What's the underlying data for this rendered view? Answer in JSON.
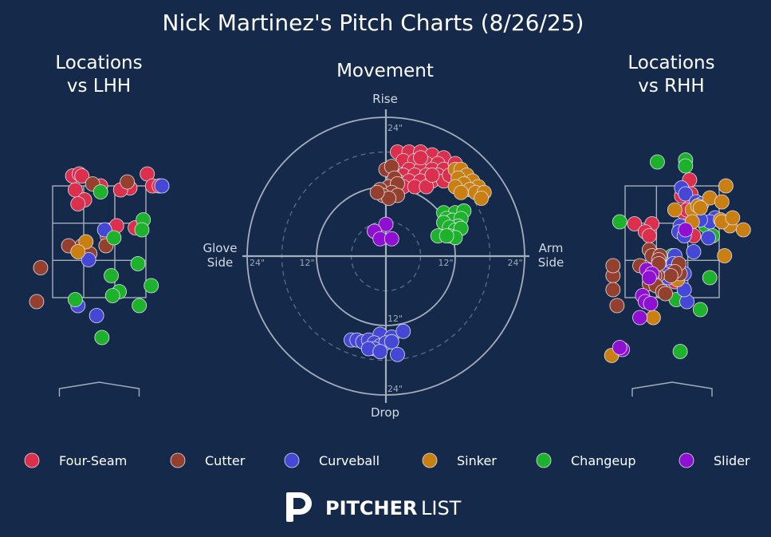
{
  "colors": {
    "background": "#152a4b",
    "guide": "#a5aebb",
    "Four-Seam": "#dc2f4d",
    "Cutter": "#95402f",
    "Curveball": "#4548d7",
    "Sinker": "#ca7f12",
    "Changeup": "#1db12c",
    "Slider": "#8f0fd2"
  },
  "brand": {
    "mark": "P",
    "word_bold": "PITCHER",
    "word_light": "LIST"
  },
  "chart_data": [
    {
      "type": "scatter",
      "title": "Nick Martinez's Pitch Charts (8/26/25)",
      "subtitle": "Locations\nvs LHH",
      "panel_title_lines": [
        "Locations",
        "vs LHH"
      ],
      "xlim": [
        -12,
        85
      ],
      "ylim": [
        -30,
        70
      ],
      "legend_position": "bottom",
      "series": [
        {
          "name": "Four-Seam",
          "points": [
            [
              15,
              61
            ],
            [
              20,
              62
            ],
            [
              22,
              61
            ],
            [
              71,
              62
            ],
            [
              75,
              56
            ],
            [
              80,
              56
            ],
            [
              17,
              54
            ],
            [
              36,
              56
            ],
            [
              58,
              55
            ],
            [
              51,
              54
            ],
            [
              24,
              49
            ],
            [
              19,
              47
            ],
            [
              62,
              35
            ],
            [
              48,
              36
            ]
          ]
        },
        {
          "name": "Cutter",
          "points": [
            [
              30,
              57
            ],
            [
              56,
              58
            ],
            [
              41,
              31
            ],
            [
              22,
              26
            ],
            [
              12,
              26
            ],
            [
              40,
              26
            ],
            [
              28,
              22
            ],
            [
              -9,
              15
            ],
            [
              -12,
              -2
            ]
          ]
        },
        {
          "name": "Curveball",
          "points": [
            [
              82,
              56
            ],
            [
              39,
              34
            ],
            [
              27,
              19
            ],
            [
              19,
              -4
            ],
            [
              33,
              -9
            ]
          ]
        },
        {
          "name": "Sinker",
          "points": [
            [
              25,
              28
            ],
            [
              19,
              23
            ]
          ]
        },
        {
          "name": "Changeup",
          "points": [
            [
              36,
              53
            ],
            [
              68,
              39
            ],
            [
              67,
              34
            ],
            [
              46,
              30
            ],
            [
              64,
              17
            ],
            [
              44,
              11
            ],
            [
              74,
              6
            ],
            [
              50,
              3
            ],
            [
              45,
              1
            ],
            [
              17,
              -1
            ],
            [
              65,
              -4
            ],
            [
              37,
              -20
            ]
          ]
        },
        {
          "name": "Slider",
          "points": []
        }
      ]
    },
    {
      "type": "scatter",
      "title": "Movement",
      "xlabel": "Glove\nSide",
      "x_labels": [
        "Glove",
        "Side",
        "Arm",
        "Side"
      ],
      "ylabel_top": "Rise",
      "ylabel_bottom": "Drop",
      "rlabels": [
        "24\"",
        "12\"",
        "12\"",
        "24\"",
        "12\"",
        "24\""
      ],
      "xlim": [
        -24,
        24
      ],
      "ylim": [
        -24,
        24
      ],
      "series": [
        {
          "name": "Four-Seam",
          "points": [
            [
              2,
              18
            ],
            [
              4,
              18
            ],
            [
              6,
              18
            ],
            [
              8,
              17.5
            ],
            [
              10,
              17
            ],
            [
              3,
              16.5
            ],
            [
              5,
              16.5
            ],
            [
              7,
              16
            ],
            [
              9,
              16
            ],
            [
              4,
              15
            ],
            [
              6,
              15
            ],
            [
              8,
              15
            ],
            [
              10,
              15
            ],
            [
              3,
              14
            ],
            [
              5,
              14
            ],
            [
              7,
              14
            ],
            [
              9,
              14
            ],
            [
              2,
              13
            ],
            [
              4,
              13
            ],
            [
              6,
              13
            ],
            [
              8,
              13
            ],
            [
              3,
              12
            ],
            [
              5,
              12
            ],
            [
              7,
              12
            ],
            [
              10,
              13
            ],
            [
              1,
              15
            ],
            [
              12,
              16
            ],
            [
              11,
              14
            ],
            [
              6,
              17
            ],
            [
              8,
              14
            ]
          ]
        },
        {
          "name": "Cutter",
          "points": [
            [
              0,
              15
            ],
            [
              1,
              15.5
            ],
            [
              1.5,
              13.5
            ],
            [
              0.5,
              12
            ],
            [
              2,
              12.5
            ],
            [
              -1,
              11.5
            ],
            [
              1,
              11
            ],
            [
              -0.5,
              10.5
            ],
            [
              2,
              10.5
            ],
            [
              0.5,
              10
            ],
            [
              -1.5,
              11
            ]
          ]
        },
        {
          "name": "Sinker",
          "points": [
            [
              12,
              15
            ],
            [
              13,
              15
            ],
            [
              14,
              14
            ],
            [
              12.5,
              13.5
            ],
            [
              15,
              13
            ],
            [
              13.5,
              12.5
            ],
            [
              16,
              12
            ],
            [
              12,
              12
            ],
            [
              14.5,
              11.5
            ],
            [
              15.5,
              11
            ],
            [
              17,
              11
            ],
            [
              13,
              11
            ],
            [
              16.5,
              10
            ]
          ]
        },
        {
          "name": "Changeup",
          "points": [
            [
              10,
              7.5
            ],
            [
              12,
              7.5
            ],
            [
              13.5,
              7.8
            ],
            [
              10.5,
              6.5
            ],
            [
              11.5,
              6.2
            ],
            [
              13,
              6.5
            ],
            [
              10,
              5.8
            ],
            [
              12.5,
              5.2
            ],
            [
              11,
              5
            ],
            [
              12,
              4.5
            ],
            [
              13,
              4.8
            ],
            [
              9,
              3.5
            ],
            [
              11,
              3.5
            ],
            [
              12,
              3.2
            ],
            [
              10.5,
              3.5
            ]
          ]
        },
        {
          "name": "Curveball",
          "points": [
            [
              -6,
              -14.5
            ],
            [
              -5,
              -14.5
            ],
            [
              -4,
              -14.8
            ],
            [
              -3,
              -14.5
            ],
            [
              -1,
              -13.5
            ],
            [
              1,
              -14
            ],
            [
              3,
              -13
            ],
            [
              -2,
              -15
            ],
            [
              -1,
              -15.5
            ],
            [
              0,
              -15
            ],
            [
              1,
              -14.8
            ],
            [
              -2,
              -16
            ],
            [
              -3,
              -16
            ],
            [
              2,
              -17
            ],
            [
              -1,
              -16.5
            ]
          ]
        },
        {
          "name": "Slider",
          "points": [
            [
              0,
              5.5
            ],
            [
              -2,
              4.3
            ],
            [
              -1,
              3
            ],
            [
              1,
              3
            ]
          ]
        }
      ]
    },
    {
      "type": "scatter",
      "subtitle": "Locations\nvs RHH",
      "panel_title_lines": [
        "Locations",
        "vs RHH"
      ],
      "xlim": [
        -12,
        85
      ],
      "ylim": [
        -30,
        70
      ],
      "series": [
        {
          "name": "Changeup",
          "points": [
            [
              24,
              68
            ],
            [
              45,
              69
            ],
            [
              45,
              66
            ],
            [
              -4,
              38
            ],
            [
              60,
              36
            ],
            [
              65,
              31
            ],
            [
              35,
              21
            ],
            [
              63,
              10
            ],
            [
              56,
              -6
            ],
            [
              41,
              -27
            ],
            [
              38,
              -1
            ]
          ]
        },
        {
          "name": "Four-Seam",
          "points": [
            [
              48,
              59
            ],
            [
              49,
              52
            ],
            [
              42,
              51
            ],
            [
              50,
              47
            ],
            [
              43,
              43
            ],
            [
              46,
              44
            ],
            [
              7,
              37
            ],
            [
              20,
              37
            ],
            [
              15,
              33
            ],
            [
              18,
              31
            ],
            [
              23,
              16
            ],
            [
              28,
              15
            ],
            [
              51,
              31
            ],
            [
              37,
              8
            ]
          ]
        },
        {
          "name": "Curveball",
          "points": [
            [
              42,
              55
            ],
            [
              45,
              52
            ],
            [
              53,
              48
            ],
            [
              57,
              47
            ],
            [
              67,
              40
            ],
            [
              63,
              38
            ],
            [
              41,
              36
            ],
            [
              40,
              33
            ],
            [
              56,
              39
            ],
            [
              62,
              30
            ],
            [
              44,
              31
            ],
            [
              51,
              23
            ],
            [
              37,
              21
            ],
            [
              36,
              17
            ],
            [
              34,
              13
            ],
            [
              29,
              12
            ],
            [
              32,
              10
            ],
            [
              46,
              -2
            ],
            [
              44,
              12
            ],
            [
              44,
              4
            ]
          ]
        },
        {
          "name": "Sinker",
          "points": [
            [
              75,
              56
            ],
            [
              63,
              50
            ],
            [
              72,
              48
            ],
            [
              50,
              44
            ],
            [
              54,
              46
            ],
            [
              56,
              45
            ],
            [
              37,
              44
            ],
            [
              50,
              38
            ],
            [
              71,
              39
            ],
            [
              78,
              36
            ],
            [
              72,
              38
            ],
            [
              80,
              40
            ],
            [
              88,
              34
            ],
            [
              74,
              21
            ],
            [
              39,
              9
            ],
            [
              24,
              21
            ],
            [
              22,
              9
            ],
            [
              21,
              -10
            ],
            [
              -10,
              -29
            ]
          ]
        },
        {
          "name": "Cutter",
          "points": [
            [
              -9,
              11
            ],
            [
              18,
              24
            ],
            [
              20,
              21
            ],
            [
              26,
              21
            ],
            [
              25,
              19
            ],
            [
              41,
              12
            ],
            [
              40,
              17
            ],
            [
              37,
              13
            ],
            [
              34,
              11
            ],
            [
              -9,
              4
            ],
            [
              -9,
              16
            ],
            [
              11,
              16
            ],
            [
              24,
              11
            ],
            [
              22,
              11
            ],
            [
              20,
              10
            ],
            [
              18,
              7
            ],
            [
              23,
              6
            ],
            [
              28,
              3
            ],
            [
              30,
              2
            ],
            [
              -6,
              -4
            ],
            [
              25,
              17
            ]
          ]
        },
        {
          "name": "Slider",
          "points": [
            [
              16,
              14
            ],
            [
              20,
              12
            ],
            [
              18,
              10
            ],
            [
              13,
              1
            ],
            [
              15,
              -2
            ],
            [
              19,
              -3
            ],
            [
              45,
              34
            ],
            [
              11,
              -10
            ],
            [
              -2,
              -26
            ],
            [
              -4,
              -25
            ]
          ]
        }
      ]
    }
  ],
  "legend": [
    {
      "name": "Four-Seam",
      "label": "Four-Seam"
    },
    {
      "name": "Cutter",
      "label": "Cutter"
    },
    {
      "name": "Curveball",
      "label": "Curveball"
    },
    {
      "name": "Sinker",
      "label": "Sinker"
    },
    {
      "name": "Changeup",
      "label": "Changeup"
    },
    {
      "name": "Slider",
      "label": "Slider"
    }
  ]
}
